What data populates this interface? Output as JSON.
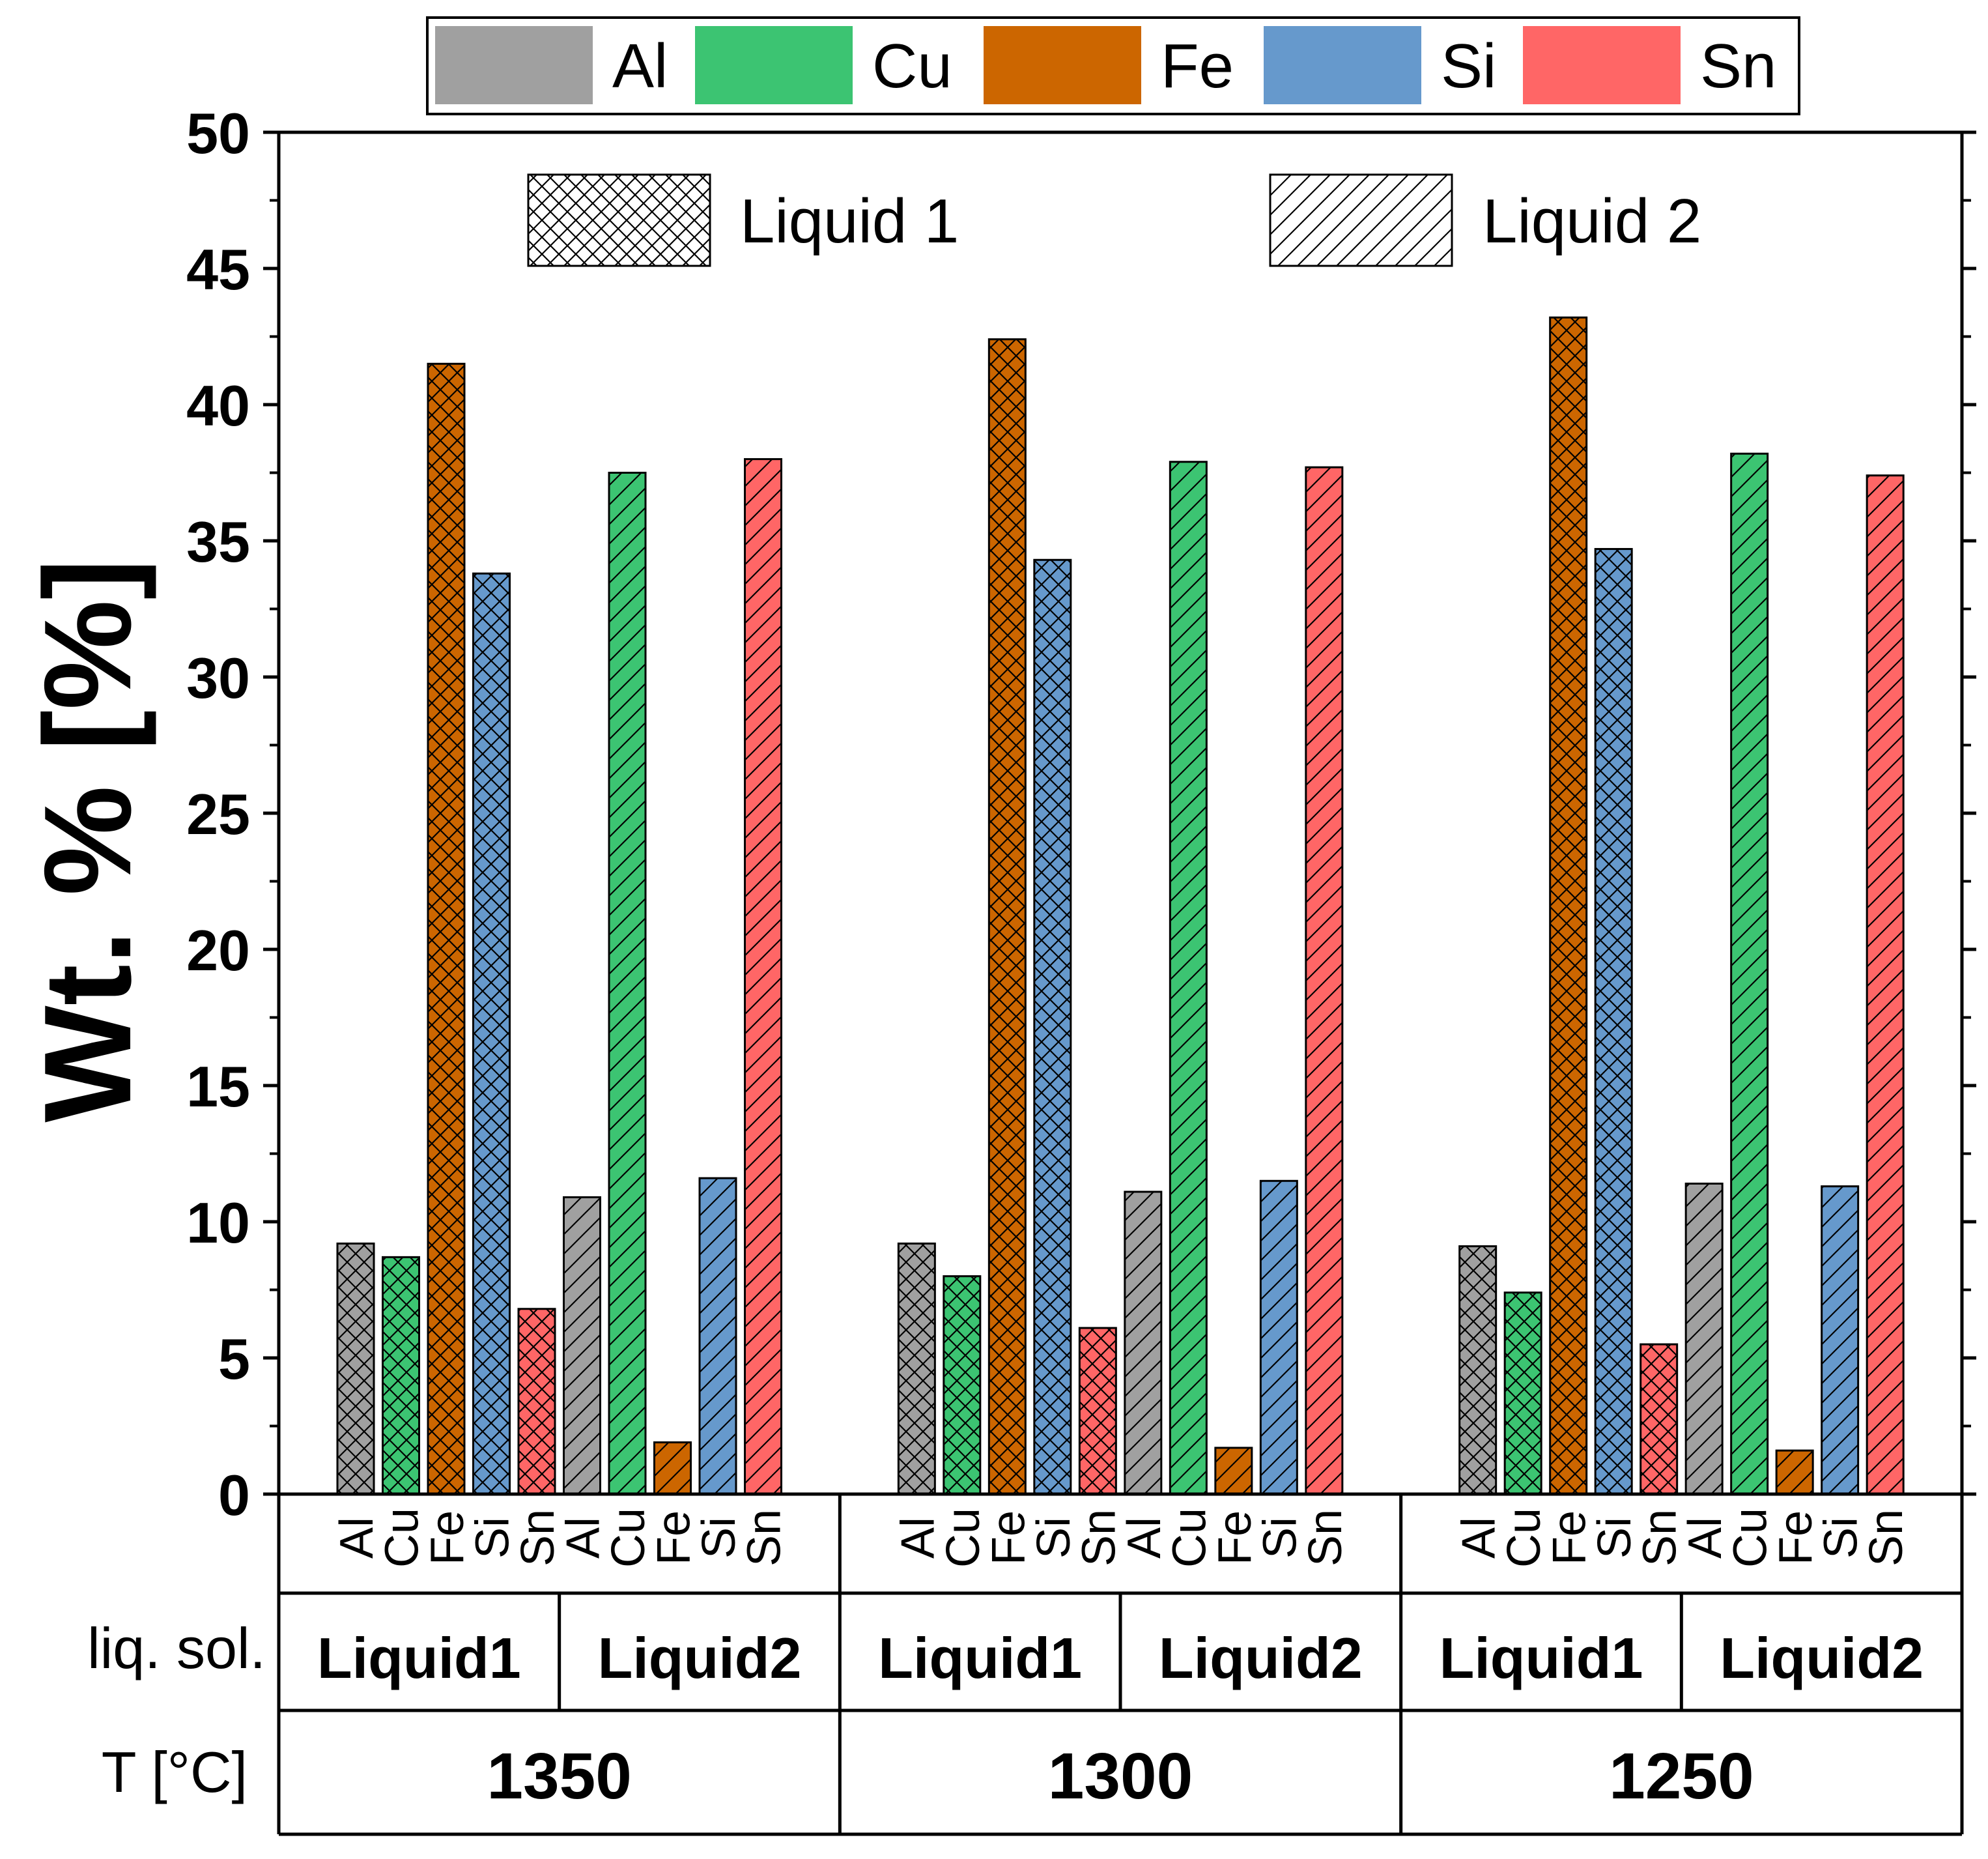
{
  "chart_data": {
    "type": "bar",
    "ylabel": "Wt. % [%]",
    "ylim": [
      0,
      50
    ],
    "yticks": [
      0,
      5,
      10,
      15,
      20,
      25,
      30,
      35,
      40,
      45,
      50
    ],
    "elements": [
      "Al",
      "Cu",
      "Fe",
      "Si",
      "Sn"
    ],
    "element_colors": {
      "Al": "#a0a0a0",
      "Cu": "#3cc472",
      "Fe": "#cc6600",
      "Si": "#6699cc",
      "Sn": "#ff6666"
    },
    "row_labels": {
      "solution": "liq. sol.",
      "temperature": "T [°C]"
    },
    "pattern_legend": {
      "liquid1": "Liquid 1",
      "liquid2": "Liquid 2"
    },
    "groups": [
      {
        "temperature": "1350",
        "phases": [
          {
            "phase": "Liquid1",
            "pattern": "crosshatch",
            "values": [
              9.2,
              8.7,
              41.5,
              33.8,
              6.8
            ]
          },
          {
            "phase": "Liquid2",
            "pattern": "diagonal",
            "values": [
              10.9,
              37.5,
              1.9,
              11.6,
              38.0
            ]
          }
        ]
      },
      {
        "temperature": "1300",
        "phases": [
          {
            "phase": "Liquid1",
            "pattern": "crosshatch",
            "values": [
              9.2,
              8.0,
              42.4,
              34.3,
              6.1
            ]
          },
          {
            "phase": "Liquid2",
            "pattern": "diagonal",
            "values": [
              11.1,
              37.9,
              1.7,
              11.5,
              37.7
            ]
          }
        ]
      },
      {
        "temperature": "1250",
        "phases": [
          {
            "phase": "Liquid1",
            "pattern": "crosshatch",
            "values": [
              9.1,
              7.4,
              43.2,
              34.7,
              5.5
            ]
          },
          {
            "phase": "Liquid2",
            "pattern": "diagonal",
            "values": [
              11.4,
              38.2,
              1.6,
              11.3,
              37.4
            ]
          }
        ]
      }
    ]
  }
}
